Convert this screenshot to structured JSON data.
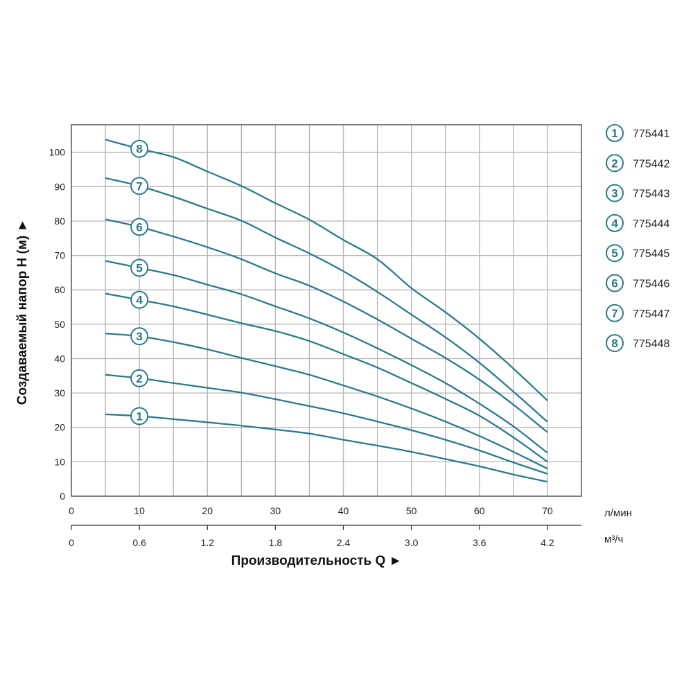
{
  "chart_data": {
    "type": "line",
    "title": "",
    "xlabel": "Производительность Q ►",
    "ylabel": "Создаваемый напор H (м) ►",
    "x_unit": "л/мин",
    "x2_unit": "м³/ч",
    "xlim": [
      0,
      75
    ],
    "ylim": [
      0,
      108
    ],
    "x_ticks": [
      0,
      10,
      20,
      30,
      40,
      50,
      60,
      70
    ],
    "x2_ticks": [
      "0",
      "0.6",
      "1.2",
      "1.8",
      "2.4",
      "3.0",
      "3.6",
      "4.2"
    ],
    "y_ticks": [
      0,
      10,
      20,
      30,
      40,
      50,
      60,
      70,
      80,
      90,
      100
    ],
    "grid": true,
    "line_color": "#2a7a8c",
    "legend_position": "right",
    "x": [
      5,
      10,
      15,
      20,
      25,
      30,
      35,
      40,
      45,
      50,
      55,
      60,
      65,
      70
    ],
    "series": [
      {
        "label": "1",
        "name": "775441",
        "values": [
          23.8,
          23.3,
          22.4,
          21.5,
          20.5,
          19.4,
          18.2,
          16.4,
          14.7,
          12.9,
          10.8,
          8.7,
          6.3,
          4.2
        ]
      },
      {
        "label": "2",
        "name": "775442",
        "values": [
          35.3,
          34.3,
          32.9,
          31.5,
          30.1,
          28.2,
          26.2,
          24.1,
          21.7,
          19.2,
          16.4,
          13.3,
          9.8,
          6.5
        ]
      },
      {
        "label": "3",
        "name": "775443",
        "values": [
          47.3,
          46.5,
          44.8,
          42.7,
          40.2,
          37.8,
          35.3,
          32.2,
          29.0,
          25.5,
          21.7,
          17.5,
          12.9,
          8.0
        ]
      },
      {
        "label": "4",
        "name": "775444",
        "values": [
          58.9,
          57.1,
          55.2,
          52.8,
          50.3,
          48.0,
          45.1,
          41.3,
          37.4,
          32.9,
          28.3,
          23.4,
          17.1,
          10.0
        ]
      },
      {
        "label": "5",
        "name": "775445",
        "values": [
          68.4,
          66.4,
          64.3,
          61.5,
          58.7,
          55.2,
          51.7,
          47.6,
          43.0,
          38.1,
          32.9,
          26.9,
          20.3,
          12.6
        ]
      },
      {
        "label": "6",
        "name": "775446",
        "values": [
          80.5,
          78.3,
          75.5,
          72.4,
          68.9,
          64.8,
          61.2,
          56.6,
          51.4,
          45.8,
          40.2,
          33.9,
          26.6,
          18.6
        ]
      },
      {
        "label": "7",
        "name": "775447",
        "values": [
          92.5,
          90.2,
          87.1,
          83.6,
          80.1,
          75.2,
          70.6,
          65.4,
          59.4,
          52.8,
          46.2,
          38.8,
          30.4,
          21.6
        ]
      },
      {
        "label": "8",
        "name": "775448",
        "values": [
          103.7,
          101.0,
          98.6,
          94.4,
          90.2,
          85.2,
          80.4,
          74.5,
          68.9,
          60.5,
          53.5,
          45.8,
          37.1,
          27.8
        ]
      }
    ]
  }
}
